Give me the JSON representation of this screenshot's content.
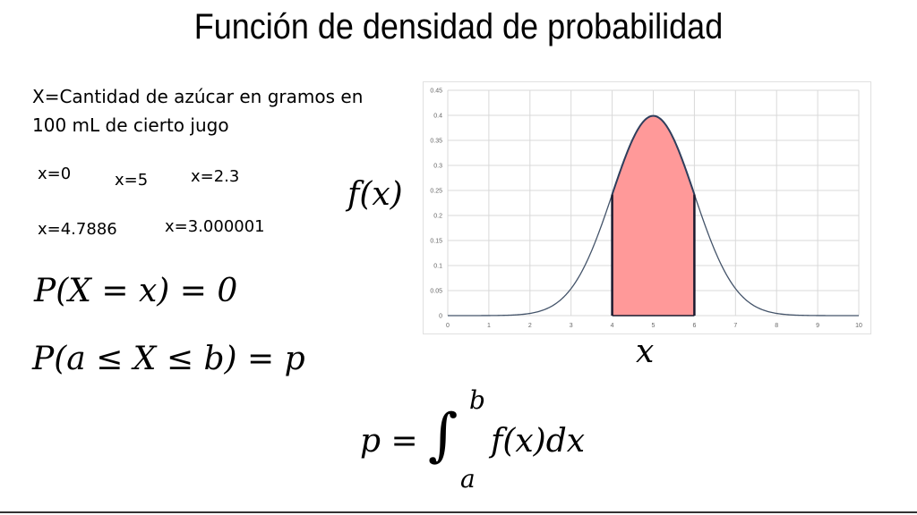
{
  "title": "Función de densidad de probabilidad",
  "description_lines": [
    "X=Cantidad de azúcar en gramos en",
    "100 mL de cierto jugo"
  ],
  "examples": [
    "x=0",
    "x=5",
    "x=2.3",
    "x=4.7886",
    "x=3.000001"
  ],
  "formulas": {
    "point_prob": "P(X = x) = 0",
    "interval_prob": "P(a ≤ X ≤ b) = p",
    "integral_lhs": "p =",
    "integral_sign": "∫",
    "upper": "b",
    "lower": "a",
    "integrand": "f(x)dx"
  },
  "axis_fx": "f(x)",
  "axis_x": "x",
  "chart_data": {
    "type": "area",
    "distribution": "normal",
    "mean": 5,
    "sd": 1,
    "xlim": [
      0,
      10
    ],
    "ylim": [
      0,
      0.45
    ],
    "xticks": [
      "0",
      "1",
      "2",
      "3",
      "4",
      "5",
      "6",
      "7",
      "8",
      "9",
      "10"
    ],
    "yticks": [
      "0",
      "0.05",
      "0.1",
      "0.15",
      "0.2",
      "0.25",
      "0.3",
      "0.35",
      "0.4",
      "0.45"
    ],
    "x": [
      0,
      1,
      2,
      3,
      4,
      5,
      6,
      7,
      8,
      9,
      10
    ],
    "y": [
      1.5e-06,
      0.000134,
      0.00443,
      0.054,
      0.242,
      0.399,
      0.242,
      0.054,
      0.00443,
      0.000134,
      1.5e-06
    ],
    "shaded_interval": [
      4,
      6
    ],
    "grid": true,
    "colors": {
      "line": "#44546a",
      "fill": "#ff9999",
      "grid": "#d9d9d9"
    }
  }
}
